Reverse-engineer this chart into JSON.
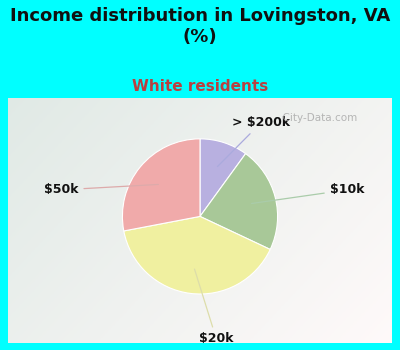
{
  "title": "Income distribution in Lovingston, VA\n(%)",
  "subtitle": "White residents",
  "title_color": "#111111",
  "subtitle_color": "#b94040",
  "title_bg_color": "#00ffff",
  "chart_bg_top_left": "#c8e8d0",
  "chart_bg_right": "#e8f4f8",
  "labels": [
    "> $200k",
    "$10k",
    "$20k",
    "$50k"
  ],
  "sizes": [
    10,
    22,
    40,
    28
  ],
  "colors": [
    "#b8b0e0",
    "#a8c898",
    "#f0f0a0",
    "#f0aaaa"
  ],
  "watermark": "  City-Data.com",
  "label_fontsize": 9,
  "title_fontsize": 13,
  "subtitle_fontsize": 11
}
